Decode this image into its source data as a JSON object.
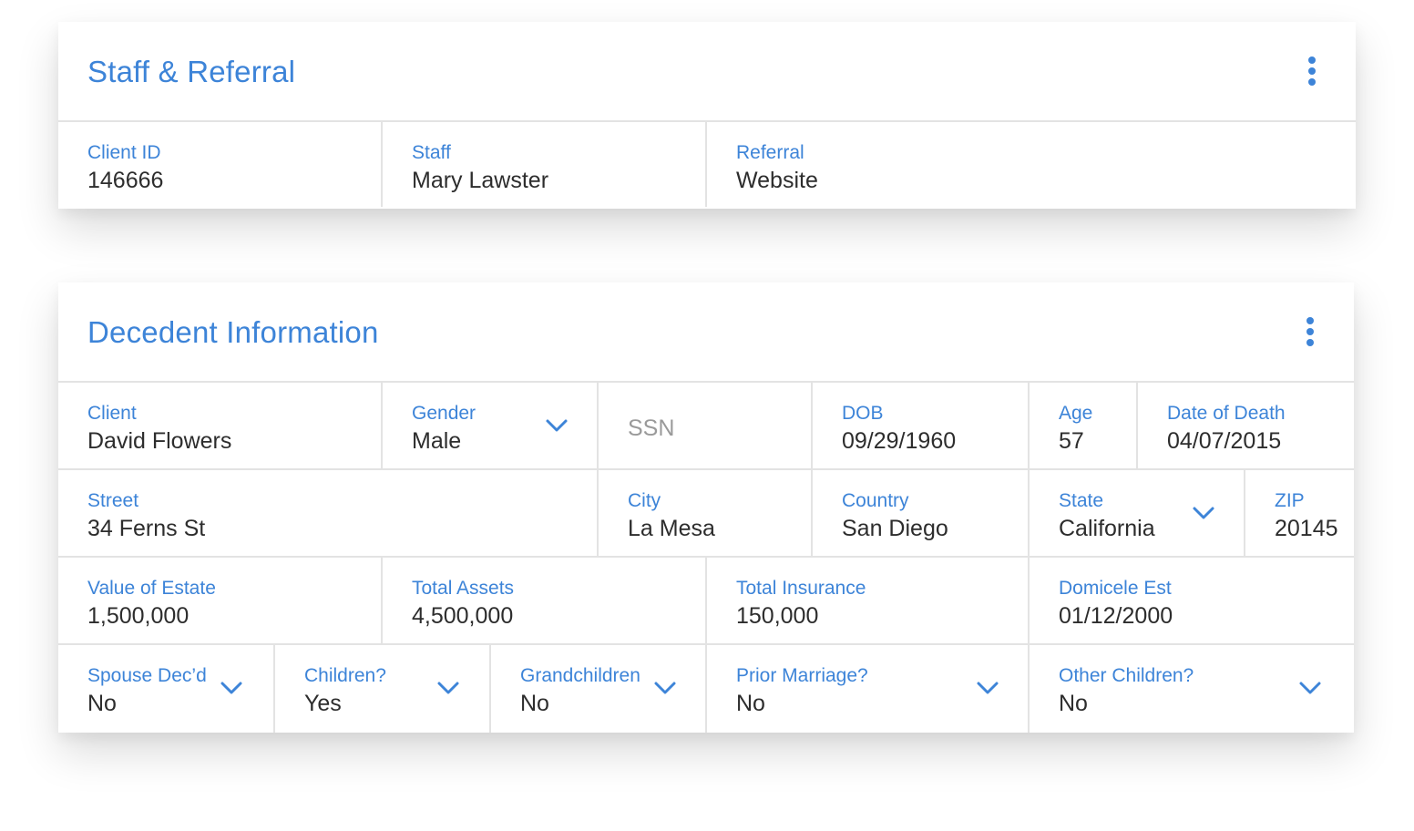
{
  "staff_referral": {
    "title": "Staff & Referral",
    "fields": [
      {
        "label": "Client ID",
        "value": "146666"
      },
      {
        "label": "Staff",
        "value": "Mary Lawster"
      },
      {
        "label": "Referral",
        "value": "Website"
      }
    ]
  },
  "decedent": {
    "title": "Decedent Information",
    "row1": [
      {
        "label": "Client",
        "value": "David Flowers"
      },
      {
        "label": "Gender",
        "value": "Male"
      },
      {
        "placeholder": "SSN"
      },
      {
        "label": "DOB",
        "value": "09/29/1960"
      },
      {
        "label": "Age",
        "value": "57"
      },
      {
        "label": "Date of Death",
        "value": "04/07/2015"
      }
    ],
    "row2": [
      {
        "label": "Street",
        "value": "34 Ferns St"
      },
      {
        "label": "City",
        "value": "La Mesa"
      },
      {
        "label": "Country",
        "value": "San Diego"
      },
      {
        "label": "State",
        "value": "California"
      },
      {
        "label": "ZIP",
        "value": "20145"
      }
    ],
    "row3": [
      {
        "label": "Value of Estate",
        "value": "1,500,000"
      },
      {
        "label": "Total Assets",
        "value": "4,500,000"
      },
      {
        "label": "Total Insurance",
        "value": "150,000"
      },
      {
        "label": "Domicele Est",
        "value": "01/12/2000"
      }
    ],
    "row4": [
      {
        "label": "Spouse Dec’d",
        "value": "No"
      },
      {
        "label": "Children?",
        "value": "Yes"
      },
      {
        "label": "Grandchildren",
        "value": "No"
      },
      {
        "label": "Prior Marriage?",
        "value": "No"
      },
      {
        "label": "Other Children?",
        "value": "No"
      }
    ]
  },
  "icons": {
    "menu": "more-vert-icon",
    "dropdown": "chevron-down-icon"
  },
  "colors": {
    "accent": "#3d84d8",
    "text": "#2d2d2d",
    "placeholder": "#9a9a9a",
    "divider": "#e3e3e3"
  }
}
